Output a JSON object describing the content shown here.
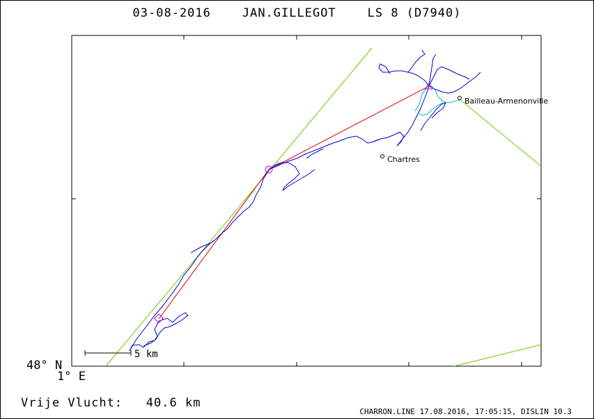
{
  "header": {
    "date": "03-08-2016",
    "pilot": "JAN.GILLEGOT",
    "glider": "LS 8 (D7940)"
  },
  "axes": {
    "lat_label": "48° N",
    "lon_label": "1° E"
  },
  "places": [
    {
      "name": "Bailleau-Armenonville"
    },
    {
      "name": "Chartres"
    }
  ],
  "scale_bar": {
    "label": "5 km"
  },
  "summary": {
    "label": "Vrije Vlucht:",
    "value": "40.6 km"
  },
  "footer": {
    "text": "CHARRON.LINE 17.08.2016, 17:05:15, DISLIN 10.3"
  },
  "colors": {
    "track": "#0000cc",
    "task_line": "#dd0000",
    "sector_line": "#66cc00",
    "turnpoint_marker": "#cc00cc",
    "cyan_track": "#00bbcc"
  }
}
